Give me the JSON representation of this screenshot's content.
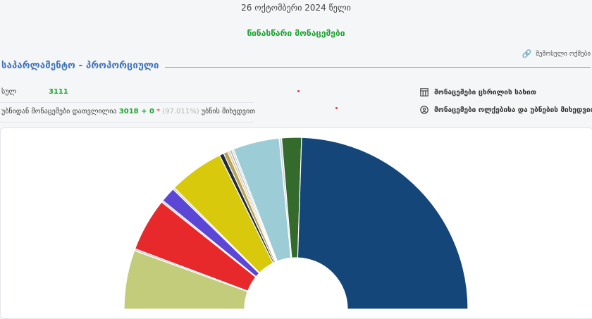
{
  "header": {
    "date": "26 ოქტომბერი 2024 წელი",
    "status": "წინასწარი მონაცემები",
    "archive_link": "შემოსული ოქმები"
  },
  "section": {
    "title": "საპარლამენტო - პროპორციული"
  },
  "stats": {
    "total_label": "სულ",
    "total_value": "3111",
    "processed_label": "უბნიდან მონაცემები დათვლილია",
    "processed_value": "3018 + 0",
    "processed_marker": "*",
    "processed_percent": "(97.011%)",
    "processed_suffix": "უბნის მიხედვით"
  },
  "actions": {
    "table_view": "მონაცემები ცხრილის სახით",
    "district_view": "მონაცემები ოლქებისა და უბნების მიხედვით"
  },
  "icons": {
    "archive": "link-icon",
    "table": "table-icon",
    "district": "location-pin-icon"
  },
  "chart_data": {
    "type": "pie",
    "variant": "semi-donut",
    "values": [
      12.2,
      0.4,
      11.0,
      0.4,
      3.1,
      0.4,
      11.4,
      0.9,
      0.9,
      0.5,
      0.4,
      0.4,
      9.6,
      0.5,
      4.1,
      53.9
    ],
    "colors": [
      "#c2cc7a",
      "#c8cdd3",
      "#e8292b",
      "#c8cdd3",
      "#5b46d6",
      "#c8cdd3",
      "#d8c90c",
      "#1f2d3d",
      "#b8a15a",
      "#e6cf9a",
      "#a8b4bf",
      "#d8dde2",
      "#9ccdd6",
      "#c8d5dd",
      "#356a2d",
      "#144679"
    ]
  }
}
